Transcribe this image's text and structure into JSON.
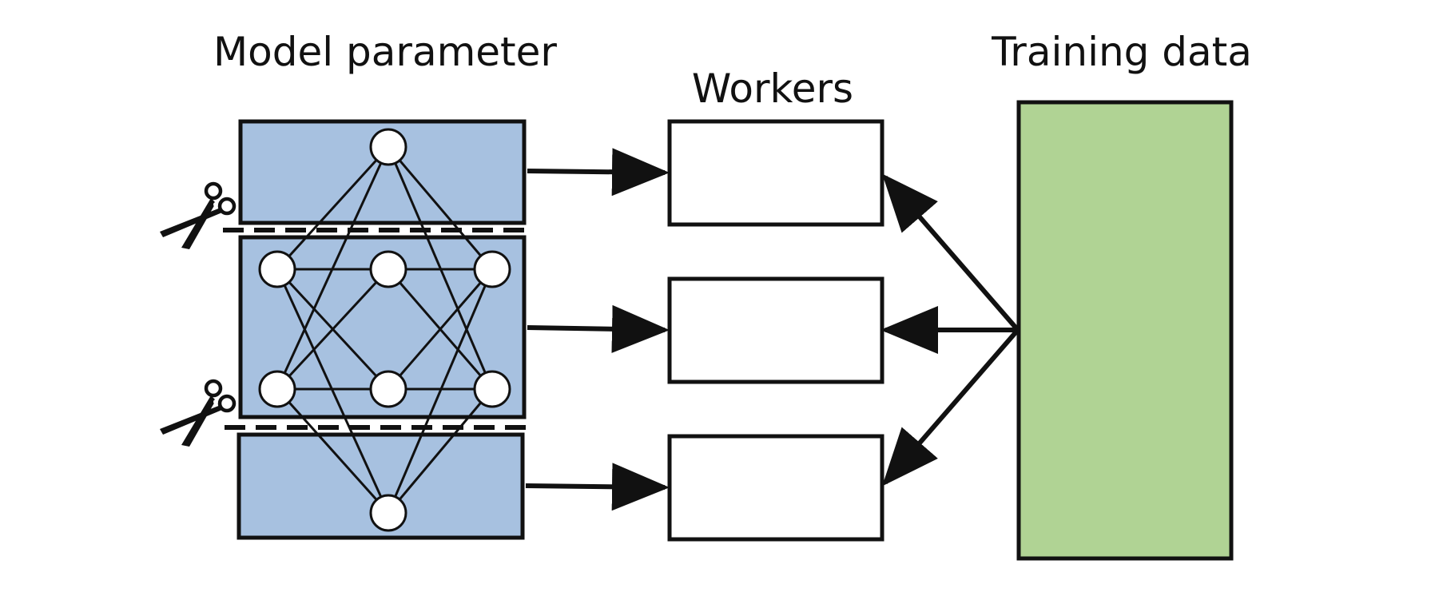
{
  "labels": {
    "model": "Model parameter",
    "workers": "Workers",
    "training": "Training data"
  },
  "colors": {
    "model_fill": "#a7c1e0",
    "training_fill": "#b0d394",
    "worker_fill": "#ffffff",
    "stroke": "#111111",
    "node_fill": "#ffffff"
  },
  "icons": {
    "cut": "scissors-icon"
  }
}
